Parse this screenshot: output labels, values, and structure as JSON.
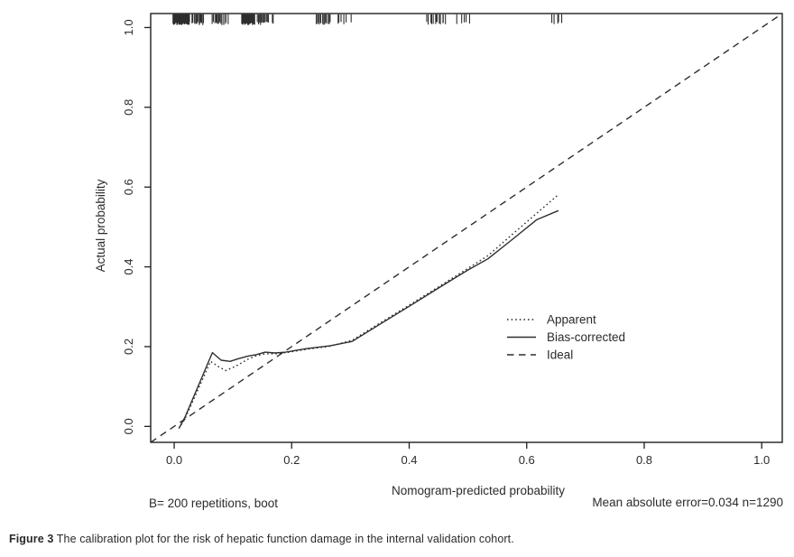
{
  "figure": {
    "caption_label": "Figure 3",
    "caption_text": "The calibration plot for the risk of hepatic function damage in the internal validation cohort."
  },
  "annotations": {
    "bootstrap_note": "B= 200 repetitions, boot",
    "error_note": "Mean absolute error=0.034 n=1290"
  },
  "colors": {
    "background": "#ffffff",
    "frame": "#1f1f1f",
    "line": "#2e2e2e",
    "text": "#2b2b2b"
  },
  "chart_data": {
    "type": "line",
    "title": "",
    "xlabel": "Nomogram-predicted probability",
    "ylabel": "Actual probability",
    "xlim": [
      -0.04,
      1.035
    ],
    "ylim": [
      -0.04,
      1.035
    ],
    "xticks": [
      0.0,
      0.2,
      0.4,
      0.6,
      0.8,
      1.0
    ],
    "yticks": [
      0.0,
      0.2,
      0.4,
      0.6,
      0.8,
      1.0
    ],
    "grid": false,
    "legend": {
      "position": "right-middle",
      "entries": [
        "Apparent",
        "Bias-corrected",
        "Ideal"
      ]
    },
    "series": [
      {
        "name": "Apparent",
        "style": "dotted",
        "points": [
          [
            0.008,
            -0.005
          ],
          [
            0.018,
            0.018
          ],
          [
            0.062,
            0.163
          ],
          [
            0.075,
            0.15
          ],
          [
            0.088,
            0.14
          ],
          [
            0.105,
            0.151
          ],
          [
            0.125,
            0.168
          ],
          [
            0.14,
            0.177
          ],
          [
            0.155,
            0.182
          ],
          [
            0.172,
            0.182
          ],
          [
            0.19,
            0.185
          ],
          [
            0.225,
            0.193
          ],
          [
            0.265,
            0.201
          ],
          [
            0.303,
            0.216
          ],
          [
            0.35,
            0.259
          ],
          [
            0.4,
            0.304
          ],
          [
            0.45,
            0.35
          ],
          [
            0.5,
            0.396
          ],
          [
            0.534,
            0.428
          ],
          [
            0.58,
            0.487
          ],
          [
            0.62,
            0.538
          ],
          [
            0.654,
            0.581
          ]
        ]
      },
      {
        "name": "Bias-corrected",
        "style": "solid",
        "points": [
          [
            0.008,
            -0.005
          ],
          [
            0.018,
            0.022
          ],
          [
            0.065,
            0.185
          ],
          [
            0.08,
            0.166
          ],
          [
            0.095,
            0.163
          ],
          [
            0.11,
            0.17
          ],
          [
            0.125,
            0.176
          ],
          [
            0.14,
            0.18
          ],
          [
            0.155,
            0.186
          ],
          [
            0.172,
            0.184
          ],
          [
            0.19,
            0.186
          ],
          [
            0.225,
            0.195
          ],
          [
            0.265,
            0.202
          ],
          [
            0.303,
            0.213
          ],
          [
            0.35,
            0.256
          ],
          [
            0.4,
            0.301
          ],
          [
            0.45,
            0.347
          ],
          [
            0.5,
            0.392
          ],
          [
            0.534,
            0.42
          ],
          [
            0.575,
            0.468
          ],
          [
            0.617,
            0.518
          ],
          [
            0.654,
            0.541
          ]
        ]
      },
      {
        "name": "Ideal",
        "style": "dashed",
        "points": [
          [
            -0.04,
            -0.04
          ],
          [
            1.035,
            1.035
          ]
        ]
      }
    ],
    "rug": {
      "position": "top",
      "clusters": [
        {
          "from": -0.002,
          "to": 0.026,
          "count": 48
        },
        {
          "from": 0.03,
          "to": 0.05,
          "count": 16
        },
        {
          "from": 0.065,
          "to": 0.091,
          "count": 15
        },
        {
          "from": 0.115,
          "to": 0.137,
          "count": 36
        },
        {
          "from": 0.142,
          "to": 0.16,
          "count": 13
        },
        {
          "from": 0.166,
          "to": 0.169,
          "count": 2
        },
        {
          "from": 0.242,
          "to": 0.265,
          "count": 15
        },
        {
          "from": 0.277,
          "to": 0.3,
          "count": 6
        },
        {
          "from": 0.431,
          "to": 0.462,
          "count": 13
        },
        {
          "from": 0.483,
          "to": 0.5,
          "count": 5
        },
        {
          "from": 0.641,
          "to": 0.661,
          "count": 5
        }
      ]
    }
  }
}
